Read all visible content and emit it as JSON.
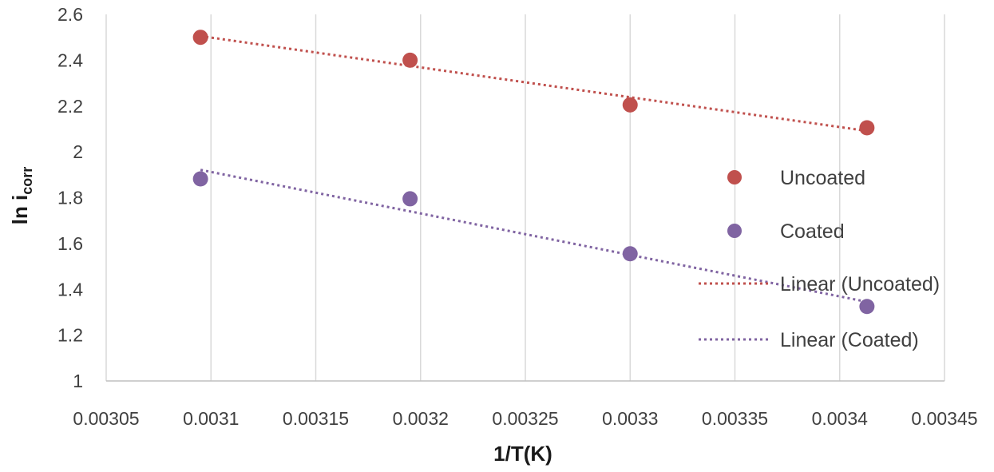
{
  "chart_data": {
    "type": "scatter",
    "title": "",
    "xlabel": "1/T(K)",
    "ylabel_main": "ln i",
    "ylabel_sub": "corr",
    "xlim": [
      0.00305,
      0.00345
    ],
    "ylim": [
      1,
      2.6
    ],
    "x_ticks": [
      0.00305,
      0.0031,
      0.00315,
      0.0032,
      0.00325,
      0.0033,
      0.00335,
      0.0034,
      0.00345
    ],
    "x_tick_labels": [
      "0.00305",
      "0.0031",
      "0.00315",
      "0.0032",
      "0.00325",
      "0.0033",
      "0.00335",
      "0.0034",
      "0.00345"
    ],
    "y_ticks": [
      1,
      1.2,
      1.4,
      1.6,
      1.8,
      2,
      2.2,
      2.4,
      2.6
    ],
    "y_tick_labels": [
      "1",
      "1.2",
      "1.4",
      "1.6",
      "1.8",
      "2",
      "2.2",
      "2.4",
      "2.6"
    ],
    "grid": "vertical",
    "legend_position": "right",
    "series": [
      {
        "name": "Uncoated",
        "color": "#c0504d",
        "x": [
          0.003095,
          0.003195,
          0.0033,
          0.003413
        ],
        "y": [
          2.5,
          2.4,
          2.205,
          2.105
        ]
      },
      {
        "name": "Coated",
        "color": "#8064a2",
        "x": [
          0.003095,
          0.003195,
          0.0033,
          0.003413
        ],
        "y": [
          1.882,
          1.795,
          1.555,
          1.325
        ]
      }
    ],
    "trendlines": [
      {
        "name": "Linear (Uncoated)",
        "color": "#c0504d",
        "series": "Uncoated"
      },
      {
        "name": "Linear (Coated)",
        "color": "#8064a2",
        "series": "Coated"
      }
    ]
  }
}
